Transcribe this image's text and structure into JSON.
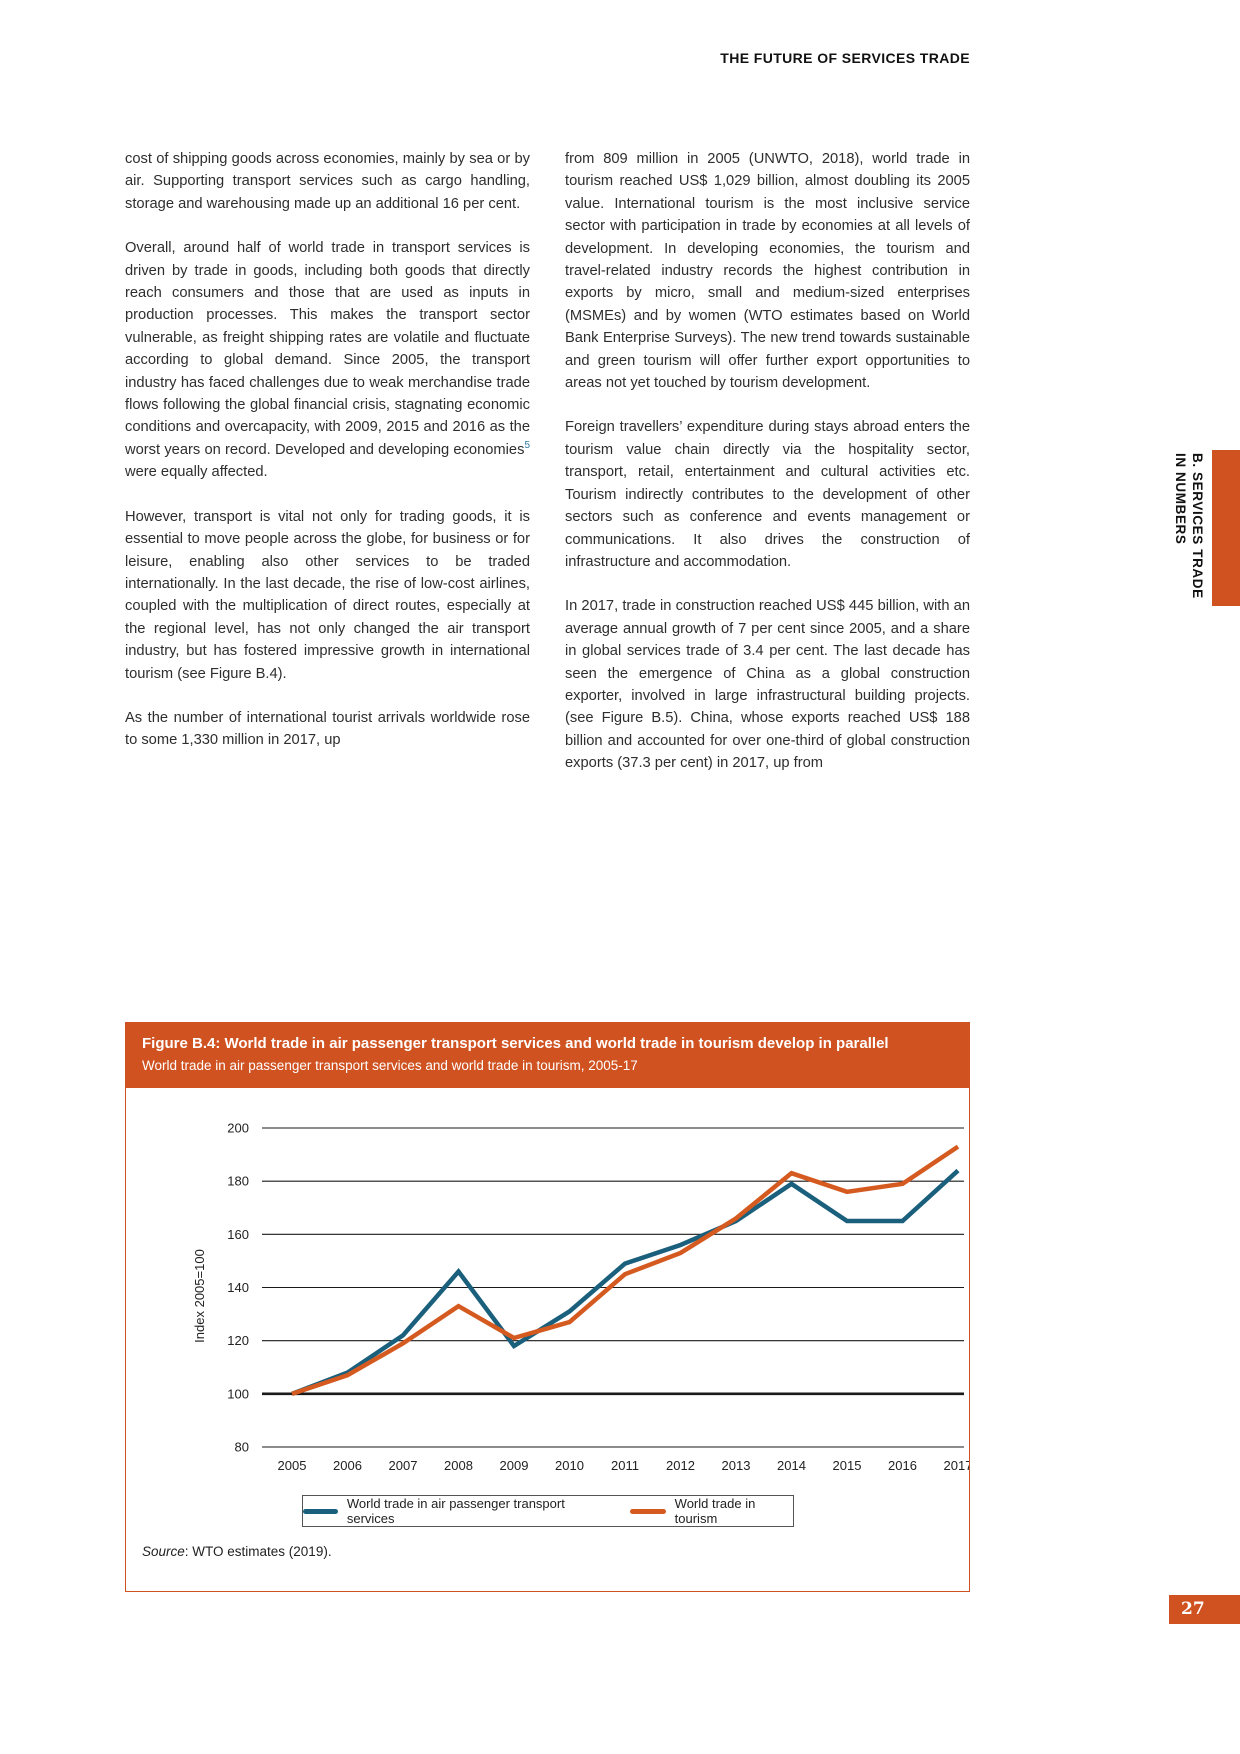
{
  "page": {
    "header": "THE FUTURE OF SERVICES TRADE",
    "page_number": "27",
    "side_tab": {
      "line1": "B. SERVICES TRADE",
      "line2": "IN NUMBERS"
    }
  },
  "columns": {
    "left": {
      "p1": "cost of shipping goods across economies, mainly by sea or by air. Supporting transport services such as cargo handling, storage and warehousing made up an additional 16 per cent.",
      "p2_before_sup": "Overall, around half of world trade in transport services is driven by trade in goods, including both goods that directly reach consumers and those that are used as inputs in production processes. This makes the transport sector vulnerable, as freight shipping rates are volatile and fluctuate according to global demand. Since 2005, the transport industry has faced challenges due to weak merchandise trade flows following the global financial crisis, stagnating economic conditions and overcapacity, with 2009, 2015 and 2016 as the worst years on record. Developed and developing economies",
      "p2_sup": "5",
      "p2_after_sup": " were equally affected.",
      "p3": "However, transport is vital not only for trading goods, it is essential to move people across the globe, for business or for leisure, enabling also other services to be traded internationally. In the last decade, the rise of low-cost airlines, coupled with the multiplication of direct routes, especially at the regional level, has not only changed the air transport industry, but has fostered impressive growth in international tourism (see Figure B.4).",
      "p4": "As the number of international tourist arrivals worldwide rose to some 1,330 million in 2017, up"
    },
    "right": {
      "p1": "from 809 million in 2005 (UNWTO, 2018), world trade in tourism reached US$ 1,029 billion, almost doubling its 2005 value. International tourism is the most inclusive service sector with participation in trade by economies at all levels of development. In developing economies, the tourism and travel-related industry records the highest contribution in exports by micro, small and medium-sized enterprises (MSMEs) and by women (WTO estimates based on World Bank Enterprise Surveys). The new trend towards sustainable and green tourism will offer further export opportunities to areas not yet touched by tourism development.",
      "p2": "Foreign travellers’ expenditure during stays abroad enters the tourism value chain directly via the hospitality sector, transport, retail, entertainment and cultural activities etc. Tourism indirectly contributes to the development of other sectors such as conference and events management or communications. It also drives the construction of infrastructure and accommodation.",
      "p3": "In 2017, trade in construction reached US$ 445 billion, with an average annual growth of 7 per cent since 2005, and a share in global services trade of 3.4 per cent. The last decade has seen the emergence of China as a global construction exporter, involved in large infrastructural building projects. (see Figure B.5). China, whose exports reached US$ 188 billion and accounted for over one-third of global construction exports (37.3 per cent) in 2017, up from"
    }
  },
  "figure": {
    "title": "Figure B.4: World trade in air passenger transport services and world trade in tourism develop in parallel",
    "subtitle": "World trade in air passenger transport services and world trade in tourism, 2005-17",
    "source_label": "Source",
    "source_rest": ": WTO estimates (2019)."
  },
  "colors": {
    "accent_orange": "#d05220",
    "line_teal": "#1a5f7c",
    "line_orange": "#d55a20",
    "gridline": "#1a1a1a"
  },
  "chart_data": {
    "type": "line",
    "x": [
      2005,
      2006,
      2007,
      2008,
      2009,
      2010,
      2011,
      2012,
      2013,
      2014,
      2015,
      2016,
      2017
    ],
    "series": [
      {
        "name": "World trade in air passenger transport services",
        "color_key": "line_teal",
        "values": [
          100,
          108,
          122,
          146,
          118,
          131,
          149,
          156,
          165,
          179,
          165,
          165,
          184
        ]
      },
      {
        "name": "World trade in tourism",
        "color_key": "line_orange",
        "values": [
          100,
          107,
          119,
          133,
          121,
          127,
          145,
          153,
          166,
          183,
          176,
          179,
          193
        ]
      }
    ],
    "ylabel": "Index 2005=100",
    "ylim": [
      80,
      200
    ],
    "ytick_step": 20,
    "baseline": 100,
    "grid": true,
    "legend_position": "bottom"
  }
}
